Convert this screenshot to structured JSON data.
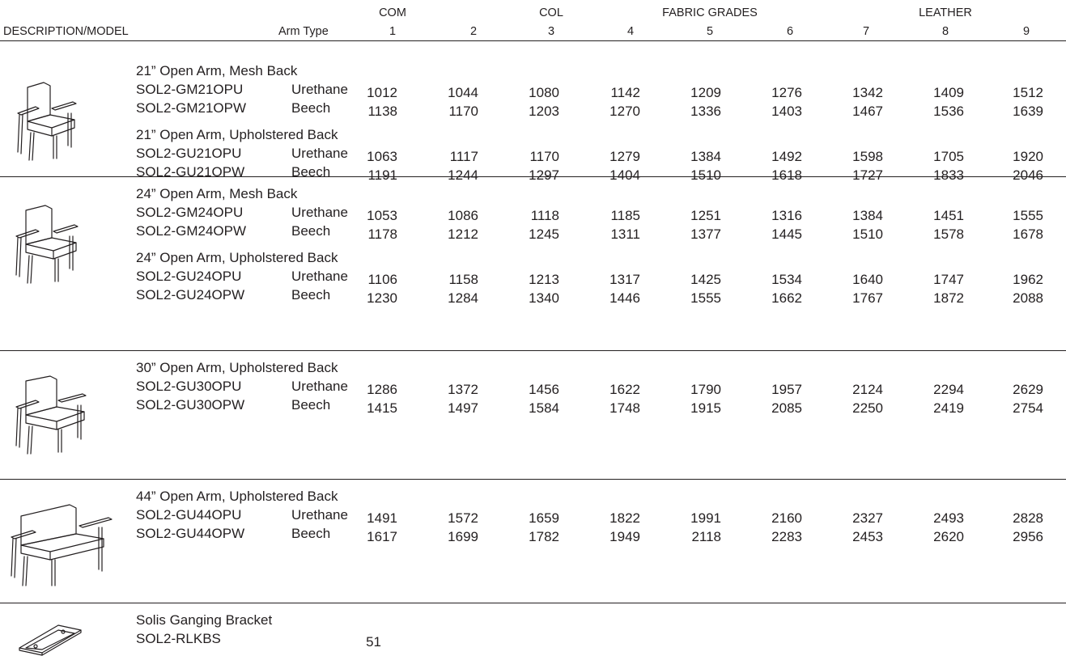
{
  "header": {
    "description_model": "DESCRIPTION/MODEL",
    "arm_type": "Arm Type",
    "groups": [
      {
        "label": "COM",
        "col": 1
      },
      {
        "label": "COL",
        "col": 3
      },
      {
        "label": "FABRIC GRADES",
        "col": 5
      },
      {
        "label": "LEATHER",
        "col": 8
      }
    ],
    "grades": [
      "1",
      "2",
      "3",
      "4",
      "5",
      "6",
      "7",
      "8",
      "9"
    ]
  },
  "sections": [
    {
      "image": "chair-21-icon",
      "groups": [
        {
          "title": "21” Open Arm, Mesh Back",
          "rows": [
            {
              "model": "SOL2-GM21OPU",
              "arm": "Urethane",
              "prices": [
                "1012",
                "1044",
                "1080",
                "1142",
                "1209",
                "1276",
                "1342",
                "1409",
                "1512"
              ]
            },
            {
              "model": "SOL2-GM21OPW",
              "arm": "Beech",
              "prices": [
                "1138",
                "1170",
                "1203",
                "1270",
                "1336",
                "1403",
                "1467",
                "1536",
                "1639"
              ]
            }
          ]
        },
        {
          "title": "21” Open Arm, Upholstered Back",
          "rows": [
            {
              "model": "SOL2-GU21OPU",
              "arm": "Urethane",
              "prices": [
                "1063",
                "1117",
                "1170",
                "1279",
                "1384",
                "1492",
                "1598",
                "1705",
                "1920"
              ]
            },
            {
              "model": "SOL2-GU21OPW",
              "arm": "Beech",
              "prices": [
                "1191",
                "1244",
                "1297",
                "1404",
                "1510",
                "1618",
                "1727",
                "1833",
                "2046"
              ]
            }
          ]
        }
      ]
    },
    {
      "image": "chair-24-icon",
      "groups": [
        {
          "title": "24” Open Arm, Mesh Back",
          "rows": [
            {
              "model": "SOL2-GM24OPU",
              "arm": "Urethane",
              "prices": [
                "1053",
                "1086",
                "1118",
                "1185",
                "1251",
                "1316",
                "1384",
                "1451",
                "1555"
              ]
            },
            {
              "model": "SOL2-GM24OPW",
              "arm": "Beech",
              "prices": [
                "1178",
                "1212",
                "1245",
                "1311",
                "1377",
                "1445",
                "1510",
                "1578",
                "1678"
              ]
            }
          ]
        },
        {
          "title": "24” Open Arm, Upholstered Back",
          "rows": [
            {
              "model": "SOL2-GU24OPU",
              "arm": "Urethane",
              "prices": [
                "1106",
                "1158",
                "1213",
                "1317",
                "1425",
                "1534",
                "1640",
                "1747",
                "1962"
              ]
            },
            {
              "model": "SOL2-GU24OPW",
              "arm": "Beech",
              "prices": [
                "1230",
                "1284",
                "1340",
                "1446",
                "1555",
                "1662",
                "1767",
                "1872",
                "2088"
              ]
            }
          ]
        }
      ]
    },
    {
      "image": "chair-30-icon",
      "groups": [
        {
          "title": "30” Open Arm, Upholstered Back",
          "rows": [
            {
              "model": "SOL2-GU30OPU",
              "arm": "Urethane",
              "prices": [
                "1286",
                "1372",
                "1456",
                "1622",
                "1790",
                "1957",
                "2124",
                "2294",
                "2629"
              ]
            },
            {
              "model": "SOL2-GU30OPW",
              "arm": "Beech",
              "prices": [
                "1415",
                "1497",
                "1584",
                "1748",
                "1915",
                "2085",
                "2250",
                "2419",
                "2754"
              ]
            }
          ]
        }
      ]
    },
    {
      "image": "settee-44-icon",
      "groups": [
        {
          "title": "44” Open Arm, Upholstered Back",
          "rows": [
            {
              "model": "SOL2-GU44OPU",
              "arm": "Urethane",
              "prices": [
                "1491",
                "1572",
                "1659",
                "1822",
                "1991",
                "2160",
                "2327",
                "2493",
                "2828"
              ]
            },
            {
              "model": "SOL2-GU44OPW",
              "arm": "Beech",
              "prices": [
                "1617",
                "1699",
                "1782",
                "1949",
                "2118",
                "2283",
                "2453",
                "2620",
                "2956"
              ]
            }
          ]
        }
      ]
    },
    {
      "image": "ganging-bracket-icon",
      "groups": [
        {
          "title": "Solis Ganging Bracket",
          "rows": [
            {
              "model": "SOL2-RLKBS",
              "arm": "",
              "prices": [
                "51"
              ]
            }
          ]
        }
      ]
    }
  ]
}
